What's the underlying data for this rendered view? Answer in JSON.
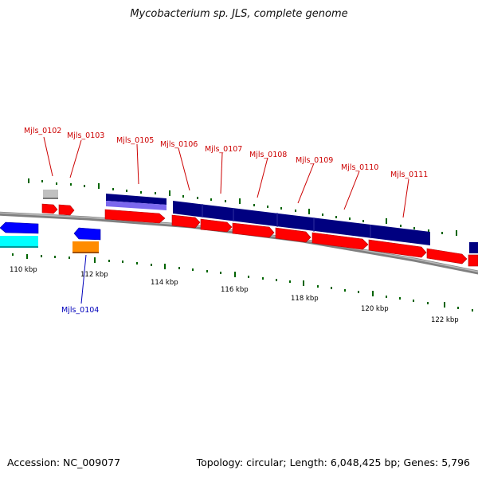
{
  "title": "Mycobacterium sp. JLS, complete genome",
  "footer": {
    "accession": "Accession: NC_009077",
    "summary": "Topology: circular; Length: 6,048,425 bp; Genes: 5,796"
  },
  "colors": {
    "cds_forward": "#ff0000",
    "cds_reverse": "#0000ff",
    "cog_navy": "#000080",
    "cog_lavender": "#7b68ee",
    "cog_cyan": "#00ffff",
    "cog_orange": "#ff8c00",
    "cog_gray": "#c0c0c0",
    "backbone": "#808080",
    "tick": "#006400",
    "label_forward": "#cc0000",
    "label_reverse": "#0000bb"
  },
  "kbp_labels": [
    "110 kbp",
    "112 kbp",
    "114 kbp",
    "116 kbp",
    "118 kbp",
    "120 kbp",
    "122 kbp"
  ],
  "gene_labels": [
    {
      "name": "Mjls_0102",
      "strand": "forward"
    },
    {
      "name": "Mjls_0103",
      "strand": "forward"
    },
    {
      "name": "Mjls_0105",
      "strand": "forward"
    },
    {
      "name": "Mjls_0106",
      "strand": "forward"
    },
    {
      "name": "Mjls_0107",
      "strand": "forward"
    },
    {
      "name": "Mjls_0108",
      "strand": "forward"
    },
    {
      "name": "Mjls_0109",
      "strand": "forward"
    },
    {
      "name": "Mjls_0110",
      "strand": "forward"
    },
    {
      "name": "Mjls_0111",
      "strand": "forward"
    },
    {
      "name": "Mjls_0104",
      "strand": "reverse"
    }
  ]
}
